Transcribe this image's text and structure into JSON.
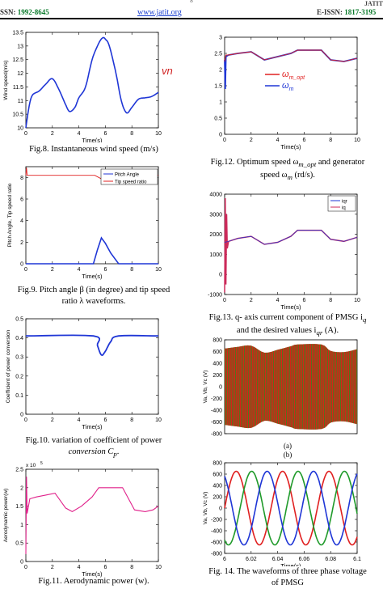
{
  "header": {
    "page_number": "8",
    "issn_label": "SSN: ",
    "issn_number": "1992-8645",
    "url": "www.jatit.org",
    "eissn_label": "E-ISSN: ",
    "eissn_number": "1817-3195",
    "logo_text": "JATIT"
  },
  "figures": [
    {
      "id": "fig8",
      "caption": "Fig.8. Instantaneous wind speed (m/s)",
      "chart_data": {
        "type": "line",
        "xlabel": "Time(s)",
        "ylabel": "Wind speed(m/s)",
        "xlim": [
          0,
          10
        ],
        "ylim": [
          10,
          13.5
        ],
        "xticks": [
          "0",
          "2",
          "4",
          "6",
          "8",
          "10"
        ],
        "yticks": [
          "10",
          "10.5",
          "11",
          "11.5",
          "12",
          "12.5",
          "13",
          "13.5"
        ],
        "annotation": "v_n",
        "color": "#1f36d6",
        "series": [
          {
            "x": [
              0,
              0.25,
              0.5,
              1,
              1.5,
              2,
              2.5,
              3,
              3.3,
              3.7,
              4,
              4.5,
              5,
              5.5,
              5.8,
              6,
              6.3,
              6.8,
              7.2,
              7.6,
              8,
              8.5,
              9,
              9.5,
              10
            ],
            "y": [
              10,
              10.8,
              11.2,
              11.35,
              11.6,
              11.8,
              11.4,
              10.85,
              10.6,
              10.75,
              11.1,
              11.5,
              12.5,
              13.1,
              13.3,
              13.25,
              13.0,
              12.0,
              11.0,
              10.55,
              10.75,
              11.05,
              11.1,
              11.15,
              11.3
            ]
          }
        ]
      }
    },
    {
      "id": "fig9",
      "caption_line1": "Fig.9. Pitch angle β  (in degree) and tip speed",
      "caption_line2": "ratio λ  waveforms.",
      "chart_data": {
        "type": "line",
        "xlabel": "Time(s)",
        "ylabel": "Pitch Angle, Tip speed ratio",
        "xlim": [
          0,
          10
        ],
        "ylim": [
          0,
          9
        ],
        "xticks": [
          "0",
          "2",
          "4",
          "6",
          "8",
          "10"
        ],
        "yticks": [
          "0",
          "2",
          "4",
          "6",
          "8"
        ],
        "legend": [
          "Pitch Angle",
          "Tip speed ratio"
        ],
        "series": [
          {
            "name": "Pitch Angle",
            "color": "#1f36d6",
            "x": [
              0,
              5.1,
              5.4,
              5.7,
              6.0,
              6.4,
              7.0,
              10
            ],
            "y": [
              0,
              0,
              1.3,
              2.4,
              1.9,
              1.0,
              0,
              0
            ]
          },
          {
            "name": "Tip speed ratio",
            "color": "#e02020",
            "x": [
              0,
              0.05,
              0.1,
              5.2,
              5.5,
              5.8,
              6.2,
              6.8,
              7.2,
              10
            ],
            "y": [
              8.2,
              8.9,
              8.2,
              8.2,
              8.0,
              7.8,
              7.9,
              8.15,
              8.2,
              8.2
            ]
          }
        ]
      }
    },
    {
      "id": "fig10",
      "caption_line1": "Fig.10. variation of coefficient  of power",
      "caption_line2": "conversion C",
      "caption_sub": "p",
      "chart_data": {
        "type": "line",
        "xlabel": "Time(s)",
        "ylabel": "Coefficient of power conversion",
        "xlim": [
          0,
          10
        ],
        "ylim": [
          0,
          0.5
        ],
        "xticks": [
          "0",
          "2",
          "4",
          "6",
          "8",
          "10"
        ],
        "yticks": [
          "0",
          "0.1",
          "0.2",
          "0.3",
          "0.4",
          "0.5"
        ],
        "color": "#1f36d6",
        "series": [
          {
            "x": [
              0,
              5.1,
              5.4,
              5.7,
              6.0,
              6.4,
              7.0,
              10
            ],
            "y": [
              0.41,
              0.41,
              0.36,
              0.31,
              0.33,
              0.38,
              0.41,
              0.41
            ]
          }
        ]
      }
    },
    {
      "id": "fig11",
      "caption": "Fig.11. Aerodynamic power (w).",
      "chart_data": {
        "type": "line",
        "xlabel": "Time(s)",
        "ylabel": "Aerodynamic power(w)",
        "exponent_label": "x 10",
        "exponent": "5",
        "xlim": [
          0,
          10
        ],
        "ylim": [
          0,
          2.5
        ],
        "xticks": [
          "0",
          "2",
          "4",
          "6",
          "8",
          "10"
        ],
        "yticks": [
          "0",
          "0.5",
          "1",
          "1.5",
          "2",
          "2.5"
        ],
        "color": "#e0208a",
        "series": [
          {
            "x": [
              0,
              0.05,
              0.1,
              0.3,
              0.8,
              1.5,
              2.2,
              3.0,
              3.5,
              4.2,
              5.0,
              5.5,
              7.3,
              8.2,
              9.0,
              9.6,
              10
            ],
            "y": [
              0.2,
              2.3,
              1.3,
              1.7,
              1.75,
              1.8,
              1.85,
              1.45,
              1.35,
              1.5,
              1.75,
              2.0,
              2.0,
              1.4,
              1.35,
              1.4,
              1.5
            ]
          }
        ]
      }
    },
    {
      "id": "fig12",
      "caption_line1": "Fig.12. Optimum speed  ω",
      "caption_line1_sub": "m_opt",
      "caption_line1_tail": " and generator",
      "caption_line2": "speed  ω",
      "caption_line2_sub": "m",
      "caption_line2_tail": " (rd/s).",
      "chart_data": {
        "type": "line",
        "xlabel": "Time(s)",
        "xlim": [
          0,
          10
        ],
        "ylim": [
          0,
          3
        ],
        "xticks": [
          "0",
          "2",
          "4",
          "6",
          "8",
          "10"
        ],
        "yticks": [
          "0",
          "0.5",
          "1",
          "1.5",
          "2",
          "2.5",
          "3"
        ],
        "legend": [
          "ω_m_opt",
          "ω_m"
        ],
        "series": [
          {
            "name": "ω_m_opt",
            "color": "#e02020",
            "x": [
              0,
              0.1,
              0.3,
              1,
              2,
              3,
              4,
              5,
              5.5,
              7.3,
              8,
              9,
              10
            ],
            "y": [
              2.25,
              2.45,
              2.45,
              2.5,
              2.55,
              2.3,
              2.4,
              2.5,
              2.6,
              2.6,
              2.3,
              2.25,
              2.35
            ]
          },
          {
            "name": "ω_m",
            "color": "#1f36d6",
            "x": [
              0,
              0.05,
              0.1,
              0.3,
              1,
              2,
              3,
              4,
              5,
              5.5,
              7.3,
              8,
              9,
              10
            ],
            "y": [
              2.3,
              1.4,
              2.4,
              2.45,
              2.5,
              2.55,
              2.3,
              2.4,
              2.5,
              2.6,
              2.6,
              2.3,
              2.25,
              2.35
            ]
          }
        ]
      }
    },
    {
      "id": "fig13",
      "caption_line1": "Fig.13. q- axis current component of PMSG  i",
      "caption_line1_sub": "q",
      "caption_line2": "and the desired values   i",
      "caption_line2_sub": "qr",
      "caption_line2_tail": " (A).",
      "chart_data": {
        "type": "line",
        "xlabel": "Time(s)",
        "xlim": [
          0,
          10
        ],
        "ylim": [
          -1000,
          4000
        ],
        "xticks": [
          "0",
          "2",
          "4",
          "6",
          "8",
          "10"
        ],
        "yticks": [
          "-1000",
          "0",
          "1000",
          "2000",
          "3000",
          "4000"
        ],
        "legend": [
          "iqr",
          "iq"
        ],
        "series": [
          {
            "name": "iqr",
            "color": "#1f36d6",
            "x": [
              0,
              0.3,
              1,
              2,
              3,
              4,
              5,
              5.5,
              7.3,
              8,
              9,
              10
            ],
            "y": [
              1600,
              1650,
              1800,
              1900,
              1500,
              1600,
              1900,
              2200,
              2200,
              1750,
              1650,
              1850
            ]
          },
          {
            "name": "iq",
            "color": "#cc2a5a",
            "x": [
              0,
              0.05,
              0.1,
              0.15,
              0.2,
              0.3,
              1,
              2,
              3,
              4,
              5,
              5.5,
              7.3,
              8,
              9,
              10
            ],
            "y": [
              -900,
              3800,
              -500,
              3000,
              1300,
              1650,
              1800,
              1900,
              1500,
              1600,
              1900,
              2200,
              2200,
              1750,
              1650,
              1850
            ]
          }
        ]
      }
    },
    {
      "id": "fig14a",
      "sublabel": "(a)",
      "chart_data": {
        "type": "area",
        "xlim": [
          0,
          10
        ],
        "ylim": [
          -800,
          800
        ],
        "ylabel": "Va, Vb, Vc (V)",
        "yticks": [
          "-800",
          "-600",
          "-400",
          "-200",
          "0",
          "200",
          "400",
          "600",
          "800"
        ],
        "series": [
          {
            "name": "envelope",
            "x": [
              0,
              1,
              2,
              3,
              4,
              5,
              5.5,
              7.3,
              8,
              9,
              10
            ],
            "y": [
              650,
              680,
              700,
              580,
              630,
              690,
              720,
              720,
              610,
              590,
              640
            ]
          }
        ]
      }
    },
    {
      "id": "fig14b",
      "sublabel": "(b)",
      "caption_line1": "Fig. 14. The waveforms of three phase voltage",
      "caption_line2": "of PMSG",
      "chart_data": {
        "type": "line",
        "xlabel": "Time(s)",
        "ylabel": "Va, Vb, Vc (V)",
        "xlim": [
          6,
          6.1
        ],
        "ylim": [
          -800,
          800
        ],
        "xticks": [
          "6",
          "6.02",
          "6.04",
          "6.06",
          "6.08",
          "6.1"
        ],
        "yticks": [
          "-800",
          "-600",
          "-400",
          "-200",
          "0",
          "200",
          "400",
          "600",
          "800"
        ],
        "amplitude": 650,
        "period": 0.035,
        "series": [
          {
            "name": "Va",
            "color": "#e02020",
            "phase_deg": 0
          },
          {
            "name": "Vb",
            "color": "#1f9a2a",
            "phase_deg": -120
          },
          {
            "name": "Vc",
            "color": "#1f36d6",
            "phase_deg": 120
          }
        ]
      }
    }
  ]
}
